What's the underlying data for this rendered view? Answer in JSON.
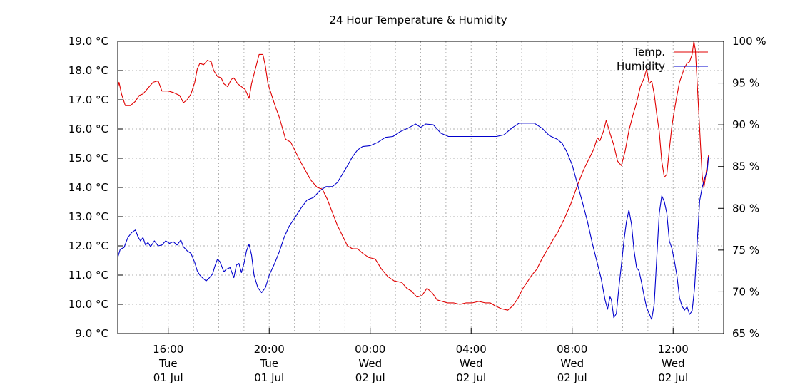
{
  "chart_data": {
    "type": "line",
    "title": "24 Hour Temperature & Humidity",
    "x_ticks": [
      {
        "t": 1.0,
        "lines": [
          "16:00",
          "Tue",
          "01 Jul"
        ]
      },
      {
        "t": 5.0,
        "lines": [
          "20:00",
          "Tue",
          "01 Jul"
        ]
      },
      {
        "t": 9.0,
        "lines": [
          "00:00",
          "Wed",
          "02 Jul"
        ]
      },
      {
        "t": 13.0,
        "lines": [
          "04:00",
          "Wed",
          "02 Jul"
        ]
      },
      {
        "t": 17.0,
        "lines": [
          "08:00",
          "Wed",
          "02 Jul"
        ]
      },
      {
        "t": 21.0,
        "lines": [
          "12:00",
          "Wed",
          "02 Jul"
        ]
      }
    ],
    "x_range": [
      -1.0,
      23.0
    ],
    "y_left": {
      "range": [
        9.0,
        19.0
      ],
      "ticks": [
        9.0,
        10.0,
        11.0,
        12.0,
        13.0,
        14.0,
        15.0,
        16.0,
        17.0,
        18.0,
        19.0
      ],
      "labels": [
        "9.0 °C",
        "10.0 °C",
        "11.0 °C",
        "12.0 °C",
        "13.0 °C",
        "14.0 °C",
        "15.0 °C",
        "16.0 °C",
        "17.0 °C",
        "18.0 °C",
        "19.0 °C"
      ]
    },
    "y_right": {
      "range": [
        65,
        100
      ],
      "ticks": [
        65,
        70,
        75,
        80,
        85,
        90,
        95,
        100
      ],
      "labels": [
        "65 %",
        "70 %",
        "75 %",
        "80 %",
        "85 %",
        "90 %",
        "95 %",
        "100 %"
      ]
    },
    "grid": true,
    "legend_position": "top-right",
    "series": [
      {
        "name": "Temp.",
        "axis": "left",
        "color": "#e00000",
        "points": [
          [
            -1.0,
            17.4
          ],
          [
            -0.95,
            17.6
          ],
          [
            -0.85,
            17.2
          ],
          [
            -0.7,
            16.8
          ],
          [
            -0.5,
            16.8
          ],
          [
            -0.3,
            16.95
          ],
          [
            -0.15,
            17.15
          ],
          [
            0.0,
            17.2
          ],
          [
            0.2,
            17.4
          ],
          [
            0.4,
            17.6
          ],
          [
            0.6,
            17.65
          ],
          [
            0.75,
            17.3
          ],
          [
            1.0,
            17.3
          ],
          [
            1.2,
            17.25
          ],
          [
            1.45,
            17.15
          ],
          [
            1.6,
            16.9
          ],
          [
            1.75,
            17.0
          ],
          [
            1.9,
            17.2
          ],
          [
            2.05,
            17.6
          ],
          [
            2.15,
            18.05
          ],
          [
            2.25,
            18.25
          ],
          [
            2.4,
            18.2
          ],
          [
            2.55,
            18.35
          ],
          [
            2.7,
            18.3
          ],
          [
            2.8,
            18.0
          ],
          [
            2.95,
            17.8
          ],
          [
            3.1,
            17.75
          ],
          [
            3.2,
            17.55
          ],
          [
            3.35,
            17.45
          ],
          [
            3.5,
            17.7
          ],
          [
            3.6,
            17.75
          ],
          [
            3.75,
            17.55
          ],
          [
            3.9,
            17.45
          ],
          [
            4.05,
            17.35
          ],
          [
            4.2,
            17.05
          ],
          [
            4.3,
            17.55
          ],
          [
            4.45,
            18.05
          ],
          [
            4.6,
            18.55
          ],
          [
            4.75,
            18.55
          ],
          [
            4.85,
            18.15
          ],
          [
            4.95,
            17.55
          ],
          [
            5.1,
            17.15
          ],
          [
            5.25,
            16.75
          ],
          [
            5.4,
            16.4
          ],
          [
            5.5,
            16.1
          ],
          [
            5.65,
            15.65
          ],
          [
            5.85,
            15.55
          ],
          [
            6.0,
            15.3
          ],
          [
            6.2,
            14.95
          ],
          [
            6.45,
            14.55
          ],
          [
            6.65,
            14.25
          ],
          [
            6.9,
            14.0
          ],
          [
            7.1,
            13.95
          ],
          [
            7.3,
            13.6
          ],
          [
            7.5,
            13.15
          ],
          [
            7.7,
            12.7
          ],
          [
            7.9,
            12.35
          ],
          [
            8.1,
            12.0
          ],
          [
            8.3,
            11.9
          ],
          [
            8.5,
            11.9
          ],
          [
            8.7,
            11.75
          ],
          [
            8.95,
            11.6
          ],
          [
            9.2,
            11.55
          ],
          [
            9.45,
            11.2
          ],
          [
            9.7,
            10.95
          ],
          [
            9.95,
            10.8
          ],
          [
            10.25,
            10.75
          ],
          [
            10.45,
            10.55
          ],
          [
            10.65,
            10.45
          ],
          [
            10.85,
            10.25
          ],
          [
            11.05,
            10.3
          ],
          [
            11.25,
            10.55
          ],
          [
            11.45,
            10.4
          ],
          [
            11.65,
            10.15
          ],
          [
            11.85,
            10.1
          ],
          [
            12.05,
            10.05
          ],
          [
            12.3,
            10.05
          ],
          [
            12.55,
            10.0
          ],
          [
            12.8,
            10.05
          ],
          [
            13.05,
            10.05
          ],
          [
            13.3,
            10.1
          ],
          [
            13.55,
            10.05
          ],
          [
            13.75,
            10.05
          ],
          [
            13.95,
            9.95
          ],
          [
            14.2,
            9.85
          ],
          [
            14.45,
            9.8
          ],
          [
            14.65,
            9.95
          ],
          [
            14.85,
            10.2
          ],
          [
            15.05,
            10.55
          ],
          [
            15.25,
            10.8
          ],
          [
            15.4,
            11.0
          ],
          [
            15.6,
            11.2
          ],
          [
            15.8,
            11.55
          ],
          [
            16.0,
            11.85
          ],
          [
            16.2,
            12.15
          ],
          [
            16.45,
            12.5
          ],
          [
            16.7,
            12.95
          ],
          [
            16.95,
            13.45
          ],
          [
            17.2,
            14.05
          ],
          [
            17.45,
            14.6
          ],
          [
            17.65,
            14.95
          ],
          [
            17.85,
            15.3
          ],
          [
            18.0,
            15.7
          ],
          [
            18.1,
            15.6
          ],
          [
            18.25,
            15.95
          ],
          [
            18.35,
            16.3
          ],
          [
            18.5,
            15.85
          ],
          [
            18.65,
            15.45
          ],
          [
            18.8,
            14.9
          ],
          [
            18.95,
            14.75
          ],
          [
            19.1,
            15.25
          ],
          [
            19.25,
            15.95
          ],
          [
            19.4,
            16.45
          ],
          [
            19.55,
            16.9
          ],
          [
            19.7,
            17.45
          ],
          [
            19.85,
            17.75
          ],
          [
            19.95,
            18.05
          ],
          [
            20.05,
            17.55
          ],
          [
            20.15,
            17.65
          ],
          [
            20.25,
            17.2
          ],
          [
            20.35,
            16.5
          ],
          [
            20.45,
            15.9
          ],
          [
            20.55,
            14.9
          ],
          [
            20.65,
            14.35
          ],
          [
            20.75,
            14.45
          ],
          [
            20.85,
            15.3
          ],
          [
            20.95,
            16.1
          ],
          [
            21.05,
            16.65
          ],
          [
            21.15,
            17.15
          ],
          [
            21.25,
            17.6
          ],
          [
            21.35,
            17.85
          ],
          [
            21.45,
            18.1
          ],
          [
            21.55,
            18.25
          ],
          [
            21.65,
            18.3
          ],
          [
            21.75,
            18.55
          ],
          [
            21.82,
            19.0
          ],
          [
            21.88,
            18.7
          ],
          [
            21.95,
            17.6
          ],
          [
            22.05,
            16.0
          ],
          [
            22.15,
            14.4
          ],
          [
            22.22,
            14.0
          ],
          [
            22.3,
            14.45
          ],
          [
            22.4,
            15.1
          ]
        ]
      },
      {
        "name": "Humidity",
        "axis": "right",
        "color": "#0000cc",
        "points": [
          [
            -1.0,
            74.1
          ],
          [
            -0.9,
            75.1
          ],
          [
            -0.75,
            75.3
          ],
          [
            -0.6,
            76.5
          ],
          [
            -0.45,
            77.1
          ],
          [
            -0.3,
            77.4
          ],
          [
            -0.2,
            76.6
          ],
          [
            -0.1,
            76.1
          ],
          [
            0.0,
            76.5
          ],
          [
            0.1,
            75.6
          ],
          [
            0.2,
            75.9
          ],
          [
            0.3,
            75.4
          ],
          [
            0.45,
            76.1
          ],
          [
            0.6,
            75.5
          ],
          [
            0.75,
            75.6
          ],
          [
            0.9,
            76.1
          ],
          [
            1.05,
            75.8
          ],
          [
            1.2,
            76.0
          ],
          [
            1.35,
            75.6
          ],
          [
            1.5,
            76.2
          ],
          [
            1.6,
            75.4
          ],
          [
            1.75,
            74.9
          ],
          [
            1.9,
            74.6
          ],
          [
            2.05,
            73.5
          ],
          [
            2.15,
            72.5
          ],
          [
            2.25,
            72.0
          ],
          [
            2.35,
            71.7
          ],
          [
            2.5,
            71.3
          ],
          [
            2.6,
            71.6
          ],
          [
            2.75,
            72.1
          ],
          [
            2.85,
            73.1
          ],
          [
            2.95,
            73.9
          ],
          [
            3.05,
            73.6
          ],
          [
            3.2,
            72.4
          ],
          [
            3.3,
            72.7
          ],
          [
            3.45,
            72.9
          ],
          [
            3.6,
            71.7
          ],
          [
            3.7,
            73.2
          ],
          [
            3.8,
            73.4
          ],
          [
            3.9,
            72.3
          ],
          [
            4.0,
            73.4
          ],
          [
            4.1,
            74.9
          ],
          [
            4.2,
            75.7
          ],
          [
            4.3,
            74.4
          ],
          [
            4.4,
            72.0
          ],
          [
            4.55,
            70.5
          ],
          [
            4.7,
            69.9
          ],
          [
            4.85,
            70.5
          ],
          [
            5.0,
            72.0
          ],
          [
            5.2,
            73.3
          ],
          [
            5.4,
            74.8
          ],
          [
            5.6,
            76.6
          ],
          [
            5.8,
            77.9
          ],
          [
            6.0,
            78.8
          ],
          [
            6.25,
            80.0
          ],
          [
            6.5,
            81.0
          ],
          [
            6.75,
            81.3
          ],
          [
            7.0,
            82.1
          ],
          [
            7.25,
            82.6
          ],
          [
            7.5,
            82.6
          ],
          [
            7.7,
            83.1
          ],
          [
            7.9,
            84.1
          ],
          [
            8.1,
            85.1
          ],
          [
            8.3,
            86.2
          ],
          [
            8.5,
            87.0
          ],
          [
            8.7,
            87.4
          ],
          [
            9.0,
            87.5
          ],
          [
            9.3,
            87.9
          ],
          [
            9.6,
            88.5
          ],
          [
            9.9,
            88.6
          ],
          [
            10.2,
            89.2
          ],
          [
            10.5,
            89.6
          ],
          [
            10.8,
            90.1
          ],
          [
            11.0,
            89.7
          ],
          [
            11.2,
            90.1
          ],
          [
            11.5,
            90.0
          ],
          [
            11.8,
            89.0
          ],
          [
            12.1,
            88.6
          ],
          [
            12.5,
            88.6
          ],
          [
            13.0,
            88.6
          ],
          [
            13.5,
            88.6
          ],
          [
            14.0,
            88.6
          ],
          [
            14.3,
            88.8
          ],
          [
            14.6,
            89.6
          ],
          [
            14.9,
            90.2
          ],
          [
            15.2,
            90.2
          ],
          [
            15.5,
            90.2
          ],
          [
            15.8,
            89.6
          ],
          [
            16.1,
            88.7
          ],
          [
            16.4,
            88.3
          ],
          [
            16.6,
            87.8
          ],
          [
            16.8,
            86.7
          ],
          [
            17.0,
            85.2
          ],
          [
            17.2,
            83.0
          ],
          [
            17.4,
            80.8
          ],
          [
            17.6,
            78.5
          ],
          [
            17.8,
            75.8
          ],
          [
            18.0,
            73.4
          ],
          [
            18.15,
            71.6
          ],
          [
            18.3,
            69.1
          ],
          [
            18.4,
            67.9
          ],
          [
            18.5,
            69.4
          ],
          [
            18.55,
            69.1
          ],
          [
            18.65,
            66.9
          ],
          [
            18.75,
            67.4
          ],
          [
            18.85,
            70.5
          ],
          [
            18.95,
            73.2
          ],
          [
            19.05,
            76.1
          ],
          [
            19.15,
            78.4
          ],
          [
            19.25,
            79.8
          ],
          [
            19.35,
            78.1
          ],
          [
            19.45,
            75.0
          ],
          [
            19.55,
            72.9
          ],
          [
            19.65,
            72.5
          ],
          [
            19.75,
            71.1
          ],
          [
            19.85,
            69.5
          ],
          [
            19.95,
            68.1
          ],
          [
            20.05,
            67.4
          ],
          [
            20.15,
            66.7
          ],
          [
            20.25,
            68.5
          ],
          [
            20.35,
            74.1
          ],
          [
            20.45,
            79.4
          ],
          [
            20.55,
            81.5
          ],
          [
            20.65,
            80.8
          ],
          [
            20.75,
            79.4
          ],
          [
            20.85,
            76.1
          ],
          [
            20.95,
            75.2
          ],
          [
            21.05,
            73.7
          ],
          [
            21.15,
            71.9
          ],
          [
            21.25,
            69.3
          ],
          [
            21.35,
            68.3
          ],
          [
            21.45,
            67.8
          ],
          [
            21.55,
            68.2
          ],
          [
            21.65,
            67.3
          ],
          [
            21.75,
            67.7
          ],
          [
            21.85,
            70.5
          ],
          [
            21.95,
            75.8
          ],
          [
            22.05,
            80.9
          ],
          [
            22.15,
            82.5
          ],
          [
            22.25,
            83.6
          ],
          [
            22.35,
            84.5
          ],
          [
            22.4,
            86.2
          ]
        ]
      }
    ]
  }
}
